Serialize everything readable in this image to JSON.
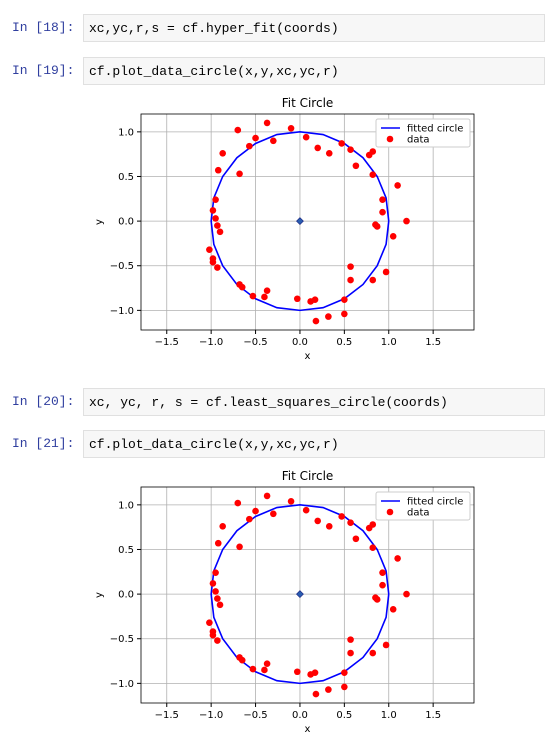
{
  "cells": [
    {
      "prompt": "In  [18]:",
      "code": "xc,yc,r,s = cf.hyper_fit(coords)"
    },
    {
      "prompt": "In  [19]:",
      "code": "cf.plot_data_circle(x,y,xc,yc,r)"
    },
    {
      "prompt": "In  [20]:",
      "code": "xc, yc, r, s = cf.least_squares_circle(coords)"
    },
    {
      "prompt": "In  [21]:",
      "code": "cf.plot_data_circle(x,y,xc,yc,r)"
    }
  ],
  "chart_data": [
    {
      "type": "scatter",
      "title": "Fit Circle",
      "xlabel": "x",
      "ylabel": "y",
      "grid": true,
      "legend": "upper right",
      "xlim": [
        -1.79,
        1.96
      ],
      "ylim": [
        -1.22,
        1.2
      ],
      "xticks": [
        {
          "value": -1.5,
          "label": "−1.5"
        },
        {
          "value": -1.0,
          "label": "−1.0"
        },
        {
          "value": -0.5,
          "label": "−0.5"
        },
        {
          "value": 0,
          "label": "0.0"
        },
        0.5,
        {
          "value": 1,
          "label": "1.0"
        },
        1.5
      ],
      "yticks": [
        {
          "value": -1.0,
          "label": "−1.0"
        },
        {
          "value": -0.5,
          "label": "−0.5"
        },
        {
          "value": 0,
          "label": "0.0"
        },
        0.5,
        {
          "value": 1,
          "label": "1.0"
        }
      ],
      "center": [
        0,
        0
      ],
      "center_color": "#2a5db0",
      "series": [
        {
          "name": "fitted circle",
          "color": "#0000ff",
          "kind": "line",
          "x": [
            1,
            0.97,
            0.87,
            0.71,
            0.5,
            0.26,
            0,
            -0.26,
            -0.5,
            -0.71,
            -0.87,
            -0.97,
            -1,
            -0.97,
            -0.87,
            -0.71,
            -0.5,
            -0.26,
            0,
            0.26,
            0.5,
            0.71,
            0.87,
            0.97,
            1
          ],
          "values": [
            0,
            0.26,
            0.5,
            0.71,
            0.87,
            0.97,
            1,
            0.97,
            0.87,
            0.71,
            0.5,
            0.26,
            0,
            -0.26,
            -0.5,
            -0.71,
            -0.87,
            -0.97,
            -1,
            -0.97,
            -0.87,
            -0.71,
            -0.5,
            -0.26,
            0
          ]
        },
        {
          "name": "data",
          "color": "#ff0000",
          "kind": "points",
          "x": [
            -0.7,
            -0.57,
            -0.5,
            -0.37,
            -0.3,
            -0.1,
            0.07,
            0.2,
            0.33,
            0.47,
            0.57,
            0.78,
            0.82,
            0.63,
            0.82,
            1.1,
            0.93,
            0.93,
            0.85,
            0.87,
            1.2,
            1.05,
            0.97,
            0.82,
            0.57,
            0.57,
            0.5,
            0.5,
            0.32,
            0.18,
            0.12,
            0.17,
            -0.03,
            -0.4,
            -0.37,
            -0.53,
            -0.65,
            -0.68,
            -0.93,
            -0.98,
            -0.98,
            -1.02,
            -0.9,
            -0.93,
            -0.95,
            -0.98,
            -0.95,
            -0.92,
            -0.87,
            -0.68
          ],
          "values": [
            1.02,
            0.84,
            0.93,
            1.1,
            0.9,
            1.04,
            0.94,
            0.82,
            0.76,
            0.87,
            0.8,
            0.74,
            0.78,
            0.62,
            0.52,
            0.4,
            0.24,
            0.1,
            -0.04,
            -0.06,
            0,
            -0.17,
            -0.57,
            -0.66,
            -0.51,
            -0.66,
            -0.88,
            -1.04,
            -1.07,
            -1.12,
            -0.9,
            -0.88,
            -0.87,
            -0.85,
            -0.78,
            -0.84,
            -0.74,
            -0.71,
            -0.52,
            -0.46,
            -0.42,
            -0.32,
            -0.12,
            -0.05,
            0.03,
            0.12,
            0.24,
            0.57,
            0.76,
            0.53
          ]
        }
      ]
    },
    {
      "type": "scatter",
      "title": "Fit Circle",
      "xlabel": "x",
      "ylabel": "y",
      "grid": true,
      "legend": "upper right",
      "xlim": [
        -1.79,
        1.96
      ],
      "ylim": [
        -1.22,
        1.2
      ],
      "xticks": [
        {
          "value": -1.5,
          "label": "−1.5"
        },
        {
          "value": -1.0,
          "label": "−1.0"
        },
        {
          "value": -0.5,
          "label": "−0.5"
        },
        {
          "value": 0,
          "label": "0.0"
        },
        0.5,
        {
          "value": 1,
          "label": "1.0"
        },
        1.5
      ],
      "yticks": [
        {
          "value": -1.0,
          "label": "−1.0"
        },
        {
          "value": -0.5,
          "label": "−0.5"
        },
        {
          "value": 0,
          "label": "0.0"
        },
        0.5,
        {
          "value": 1,
          "label": "1.0"
        }
      ],
      "center": [
        0,
        0
      ],
      "center_color": "#2a5db0",
      "series": [
        {
          "name": "fitted circle",
          "color": "#0000ff",
          "kind": "line",
          "x": [
            1,
            0.97,
            0.87,
            0.71,
            0.5,
            0.26,
            0,
            -0.26,
            -0.5,
            -0.71,
            -0.87,
            -0.97,
            -1,
            -0.97,
            -0.87,
            -0.71,
            -0.5,
            -0.26,
            0,
            0.26,
            0.5,
            0.71,
            0.87,
            0.97,
            1
          ],
          "values": [
            0,
            0.26,
            0.5,
            0.71,
            0.87,
            0.97,
            1,
            0.97,
            0.87,
            0.71,
            0.5,
            0.26,
            0,
            -0.26,
            -0.5,
            -0.71,
            -0.87,
            -0.97,
            -1,
            -0.97,
            -0.87,
            -0.71,
            -0.5,
            -0.26,
            0
          ]
        },
        {
          "name": "data",
          "color": "#ff0000",
          "kind": "points",
          "x": [
            -0.7,
            -0.57,
            -0.5,
            -0.37,
            -0.3,
            -0.1,
            0.07,
            0.2,
            0.33,
            0.47,
            0.57,
            0.78,
            0.82,
            0.63,
            0.82,
            1.1,
            0.93,
            0.93,
            0.85,
            0.87,
            1.2,
            1.05,
            0.97,
            0.82,
            0.57,
            0.57,
            0.5,
            0.5,
            0.32,
            0.18,
            0.12,
            0.17,
            -0.03,
            -0.4,
            -0.37,
            -0.53,
            -0.65,
            -0.68,
            -0.93,
            -0.98,
            -0.98,
            -1.02,
            -0.9,
            -0.93,
            -0.95,
            -0.98,
            -0.95,
            -0.92,
            -0.87,
            -0.68
          ],
          "values": [
            1.02,
            0.84,
            0.93,
            1.1,
            0.9,
            1.04,
            0.94,
            0.82,
            0.76,
            0.87,
            0.8,
            0.74,
            0.78,
            0.62,
            0.52,
            0.4,
            0.24,
            0.1,
            -0.04,
            -0.06,
            0,
            -0.17,
            -0.57,
            -0.66,
            -0.51,
            -0.66,
            -0.88,
            -1.04,
            -1.07,
            -1.12,
            -0.9,
            -0.88,
            -0.87,
            -0.85,
            -0.78,
            -0.84,
            -0.74,
            -0.71,
            -0.52,
            -0.46,
            -0.42,
            -0.32,
            -0.12,
            -0.05,
            0.03,
            0.12,
            0.24,
            0.57,
            0.76,
            0.53
          ]
        }
      ]
    }
  ]
}
